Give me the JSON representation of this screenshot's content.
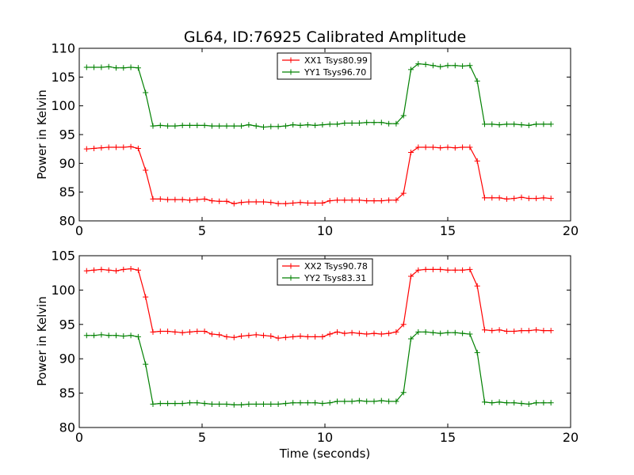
{
  "chart_data": [
    {
      "type": "line",
      "title": "GL64, ID:76925 Calibrated Amplitude",
      "xlabel": "",
      "ylabel": "Power in Kelvin",
      "xlim": [
        0,
        20
      ],
      "ylim": [
        80,
        110
      ],
      "xticks": [
        0,
        5,
        10,
        15,
        20
      ],
      "yticks": [
        80,
        85,
        90,
        95,
        100,
        105,
        110
      ],
      "grid": false,
      "legend": "top-center",
      "x": [
        0.3,
        0.6,
        0.9,
        1.2,
        1.5,
        1.8,
        2.1,
        2.4,
        2.7,
        3.0,
        3.3,
        3.6,
        3.9,
        4.2,
        4.5,
        4.8,
        5.1,
        5.4,
        5.7,
        6.0,
        6.3,
        6.6,
        6.9,
        7.2,
        7.5,
        7.8,
        8.1,
        8.4,
        8.7,
        9.0,
        9.3,
        9.6,
        9.9,
        10.2,
        10.5,
        10.8,
        11.1,
        11.4,
        11.7,
        12.0,
        12.3,
        12.6,
        12.9,
        13.2,
        13.5,
        13.8,
        14.1,
        14.4,
        14.7,
        15.0,
        15.3,
        15.6,
        15.9,
        16.2,
        16.5,
        16.8,
        17.1,
        17.4,
        17.7,
        18.0,
        18.3,
        18.6,
        18.9,
        19.2
      ],
      "series": [
        {
          "name": "XX1 Tsys80.99",
          "color": "#ff0000",
          "values": [
            92.5,
            92.6,
            92.7,
            92.8,
            92.8,
            92.8,
            92.9,
            92.6,
            88.8,
            83.8,
            83.8,
            83.7,
            83.7,
            83.7,
            83.6,
            83.7,
            83.8,
            83.5,
            83.4,
            83.4,
            83.0,
            83.2,
            83.3,
            83.3,
            83.3,
            83.2,
            83.0,
            83.0,
            83.1,
            83.2,
            83.1,
            83.1,
            83.1,
            83.5,
            83.6,
            83.6,
            83.6,
            83.6,
            83.5,
            83.5,
            83.5,
            83.6,
            83.6,
            84.8,
            91.9,
            92.8,
            92.8,
            92.8,
            92.7,
            92.8,
            92.7,
            92.8,
            92.8,
            90.4,
            84.0,
            84.0,
            84.0,
            83.8,
            83.9,
            84.1,
            83.9,
            83.9,
            84.0,
            83.9
          ]
        },
        {
          "name": "YY1 Tsys96.70",
          "color": "#008000",
          "values": [
            106.7,
            106.7,
            106.7,
            106.8,
            106.6,
            106.6,
            106.7,
            106.6,
            102.3,
            96.5,
            96.6,
            96.5,
            96.5,
            96.6,
            96.6,
            96.6,
            96.6,
            96.5,
            96.5,
            96.5,
            96.5,
            96.5,
            96.7,
            96.5,
            96.3,
            96.4,
            96.4,
            96.5,
            96.7,
            96.6,
            96.7,
            96.6,
            96.7,
            96.8,
            96.8,
            97.0,
            97.0,
            97.0,
            97.1,
            97.1,
            97.1,
            96.9,
            96.9,
            98.3,
            106.3,
            107.3,
            107.2,
            107.0,
            106.8,
            107.0,
            107.0,
            106.9,
            107.0,
            104.3,
            96.8,
            96.8,
            96.7,
            96.8,
            96.8,
            96.7,
            96.6,
            96.8,
            96.8,
            96.8
          ]
        }
      ]
    },
    {
      "type": "line",
      "title": "",
      "xlabel": "Time (seconds)",
      "ylabel": "Power in Kelvin",
      "xlim": [
        0,
        20
      ],
      "ylim": [
        80,
        105
      ],
      "xticks": [
        0,
        5,
        10,
        15,
        20
      ],
      "yticks": [
        80,
        85,
        90,
        95,
        100,
        105
      ],
      "grid": false,
      "legend": "top-center",
      "x": [
        0.3,
        0.6,
        0.9,
        1.2,
        1.5,
        1.8,
        2.1,
        2.4,
        2.7,
        3.0,
        3.3,
        3.6,
        3.9,
        4.2,
        4.5,
        4.8,
        5.1,
        5.4,
        5.7,
        6.0,
        6.3,
        6.6,
        6.9,
        7.2,
        7.5,
        7.8,
        8.1,
        8.4,
        8.7,
        9.0,
        9.3,
        9.6,
        9.9,
        10.2,
        10.5,
        10.8,
        11.1,
        11.4,
        11.7,
        12.0,
        12.3,
        12.6,
        12.9,
        13.2,
        13.5,
        13.8,
        14.1,
        14.4,
        14.7,
        15.0,
        15.3,
        15.6,
        15.9,
        16.2,
        16.5,
        16.8,
        17.1,
        17.4,
        17.7,
        18.0,
        18.3,
        18.6,
        18.9,
        19.2
      ],
      "series": [
        {
          "name": "XX2 Tsys90.78",
          "color": "#ff0000",
          "values": [
            102.8,
            102.9,
            103.0,
            102.9,
            102.8,
            103.0,
            103.1,
            102.9,
            99.0,
            93.9,
            94.0,
            94.0,
            93.9,
            93.8,
            93.9,
            94.0,
            94.0,
            93.6,
            93.5,
            93.2,
            93.1,
            93.3,
            93.4,
            93.5,
            93.4,
            93.3,
            93.0,
            93.1,
            93.2,
            93.3,
            93.2,
            93.2,
            93.2,
            93.6,
            93.9,
            93.7,
            93.8,
            93.7,
            93.6,
            93.7,
            93.6,
            93.7,
            93.9,
            95.0,
            102.0,
            102.9,
            103.0,
            103.0,
            103.0,
            102.9,
            102.9,
            102.9,
            103.0,
            100.6,
            94.2,
            94.1,
            94.2,
            94.0,
            94.0,
            94.1,
            94.1,
            94.2,
            94.1,
            94.1
          ]
        },
        {
          "name": "YY2 Tsys83.31",
          "color": "#008000",
          "values": [
            93.4,
            93.4,
            93.5,
            93.4,
            93.4,
            93.3,
            93.4,
            93.2,
            89.2,
            83.4,
            83.5,
            83.5,
            83.5,
            83.5,
            83.6,
            83.6,
            83.5,
            83.4,
            83.4,
            83.4,
            83.3,
            83.3,
            83.4,
            83.4,
            83.4,
            83.4,
            83.4,
            83.5,
            83.6,
            83.6,
            83.6,
            83.6,
            83.5,
            83.6,
            83.8,
            83.8,
            83.8,
            83.9,
            83.8,
            83.8,
            83.9,
            83.8,
            83.8,
            85.1,
            92.9,
            93.9,
            93.9,
            93.8,
            93.7,
            93.8,
            93.8,
            93.7,
            93.6,
            90.9,
            83.7,
            83.6,
            83.7,
            83.6,
            83.6,
            83.5,
            83.4,
            83.6,
            83.6,
            83.6
          ]
        }
      ]
    }
  ]
}
